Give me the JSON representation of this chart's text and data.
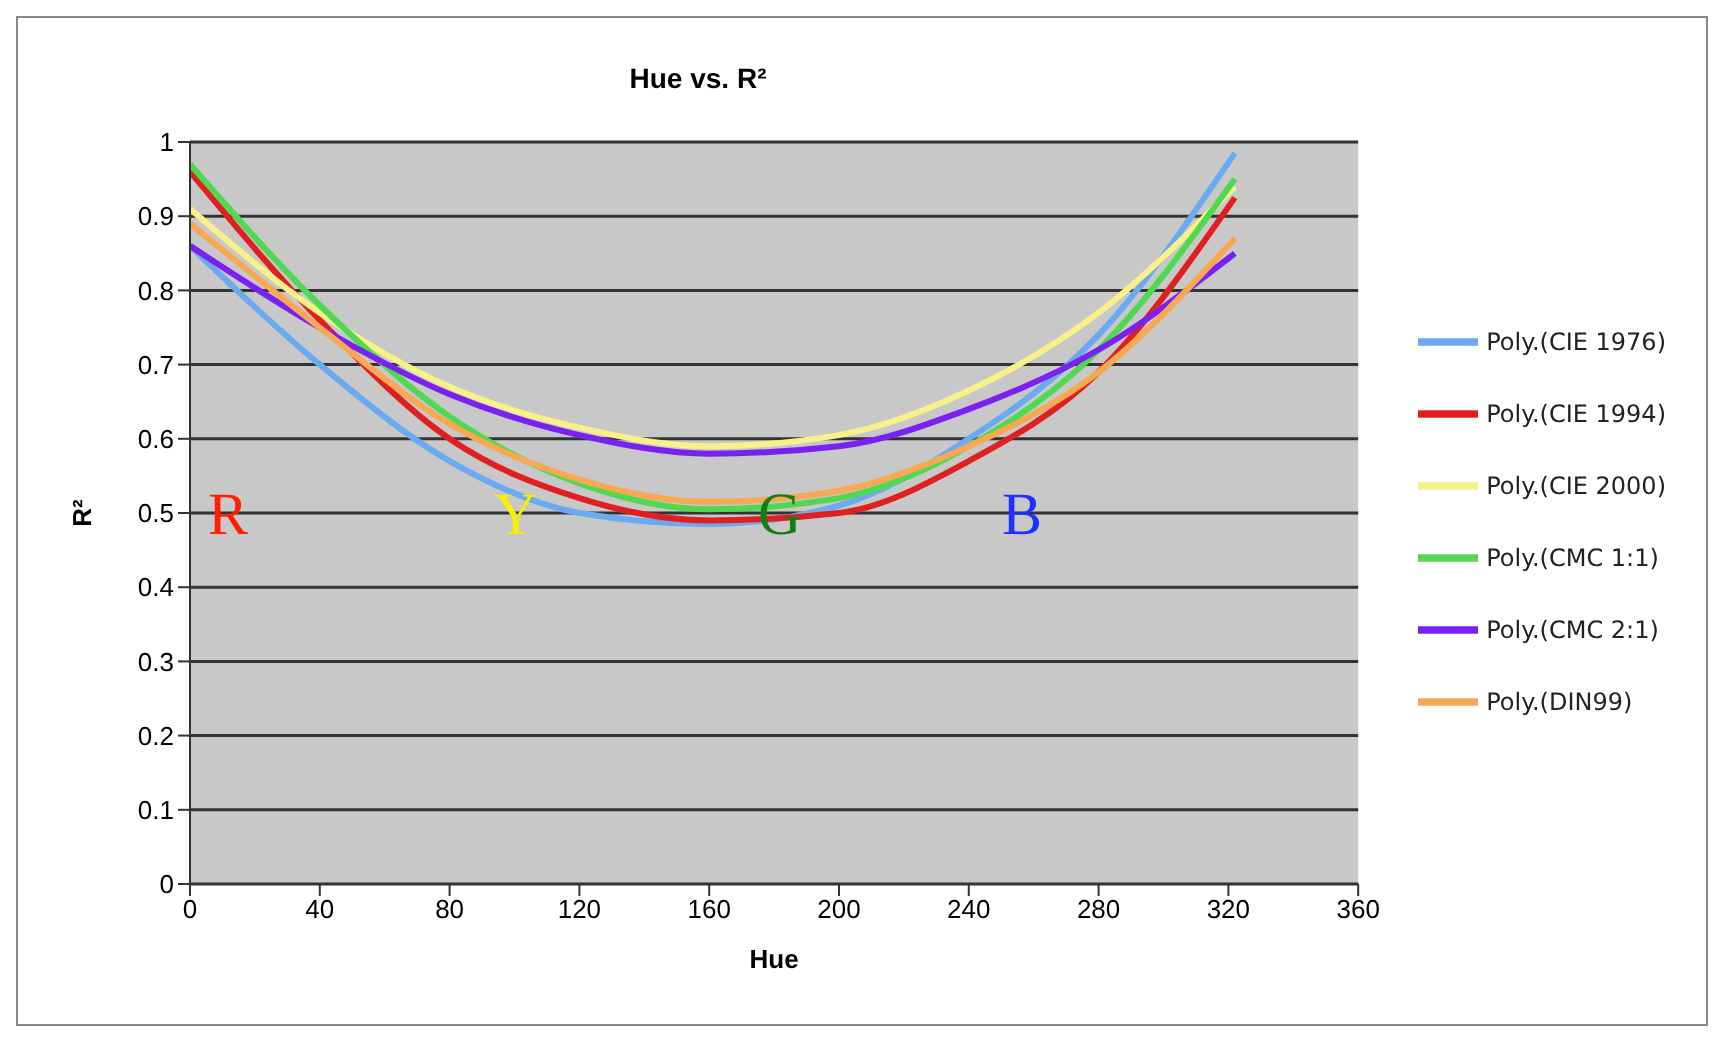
{
  "chart_data": {
    "type": "line",
    "title": "Hue vs. R²",
    "xlabel": "Hue",
    "ylabel": "R²",
    "x": [
      0,
      40,
      80,
      120,
      160,
      200,
      240,
      280,
      322
    ],
    "series": [
      {
        "name": "Poly.(CIE 1976)",
        "color": "#6aaaf0",
        "values": [
          0.86,
          0.7,
          0.57,
          0.5,
          0.485,
          0.51,
          0.6,
          0.74,
          0.985
        ]
      },
      {
        "name": "Poly.(CIE 1994)",
        "color": "#e02020",
        "values": [
          0.96,
          0.76,
          0.6,
          0.52,
          0.49,
          0.5,
          0.57,
          0.69,
          0.925
        ]
      },
      {
        "name": "Poly.(CIE 2000)",
        "color": "#f8f088",
        "values": [
          0.91,
          0.77,
          0.67,
          0.615,
          0.59,
          0.605,
          0.665,
          0.77,
          0.94
        ]
      },
      {
        "name": "Poly.(CMC 1:1)",
        "color": "#50d850",
        "values": [
          0.97,
          0.78,
          0.63,
          0.54,
          0.505,
          0.52,
          0.59,
          0.72,
          0.95
        ]
      },
      {
        "name": "Poly.(CMC 2:1)",
        "color": "#7a20f0",
        "values": [
          0.86,
          0.75,
          0.66,
          0.605,
          0.58,
          0.59,
          0.64,
          0.72,
          0.85
        ]
      },
      {
        "name": "Poly.(DIN99)",
        "color": "#f8a850",
        "values": [
          0.89,
          0.75,
          0.62,
          0.545,
          0.515,
          0.53,
          0.59,
          0.69,
          0.87
        ]
      }
    ],
    "annotations": [
      "R",
      "Y",
      "G",
      "B"
    ],
    "xlim": [
      0,
      360
    ],
    "xticks": [
      0,
      40,
      80,
      120,
      160,
      200,
      240,
      280,
      320,
      360
    ],
    "ylim": [
      0,
      1
    ],
    "yticks": [
      0,
      0.1,
      0.2,
      0.3,
      0.4,
      0.5,
      0.6,
      0.7,
      0.8,
      0.9,
      1
    ],
    "grid": "y",
    "legend": "right",
    "marker": "none",
    "line_style": "solid"
  }
}
